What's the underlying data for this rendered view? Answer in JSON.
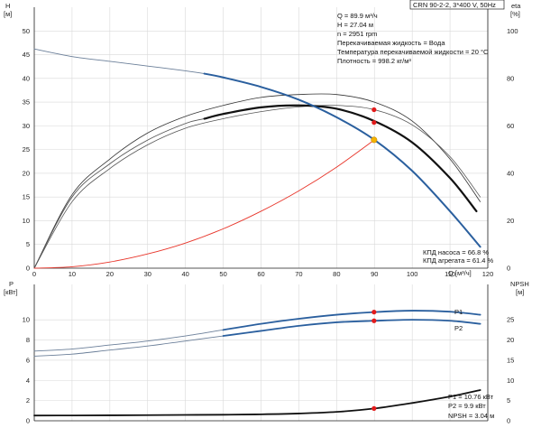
{
  "title": "CRN 90-2-2, 3*400 V, 50Hz",
  "info": [
    "Q = 89.9 м³/ч",
    "H = 27.04 м",
    "n = 2951 rpm",
    "Перекачиваемая жидкость = Вода",
    "Температура перекачиваемой жидкости = 20 °C",
    "Плотность = 998.2 кг/м³"
  ],
  "colors": {
    "head_curve": "#2a5f9e",
    "power_curve": "#2a5f9e",
    "system_curve": "#e8352a",
    "efficiency_curve": "#111111",
    "operating_point": "#f5b400",
    "marker": "#e31b1b",
    "grid": "#d9d9d9"
  },
  "chart_data": [
    {
      "type": "line",
      "name": "upper",
      "xlabel": "Q [м³/ч]",
      "ylabel": "H",
      "ylabel_unit": "[м]",
      "ylabel_right": "eta",
      "ylabel_right_unit": "[%]",
      "xlim": [
        0,
        120
      ],
      "ylim": [
        0,
        55
      ],
      "ylim_right": [
        0,
        110
      ],
      "x_ticks": [
        0,
        10,
        20,
        30,
        40,
        50,
        60,
        70,
        80,
        90,
        100,
        110,
        120
      ],
      "y_ticks": [
        0,
        5,
        10,
        15,
        20,
        25,
        30,
        35,
        40,
        45,
        50
      ],
      "y_ticks_right": [
        0,
        20,
        40,
        60,
        80,
        100
      ],
      "grid": true,
      "series": [
        {
          "key": "head",
          "x": [
            0,
            10,
            20,
            30,
            40,
            45,
            50,
            60,
            70,
            80,
            90,
            100,
            110,
            118
          ],
          "y": [
            46.2,
            44.6,
            43.6,
            42.6,
            41.6,
            41.0,
            40.2,
            38.2,
            35.5,
            31.8,
            27.04,
            20.5,
            12.0,
            4.5
          ]
        },
        {
          "key": "system",
          "x": [
            0,
            10,
            20,
            30,
            40,
            50,
            60,
            70,
            80,
            90
          ],
          "y": [
            0,
            0.3,
            1.3,
            3.0,
            5.3,
            8.3,
            12.0,
            16.3,
            21.3,
            27.04
          ]
        },
        {
          "key": "eta_thin_upper",
          "x": [
            0,
            10,
            20,
            30,
            40,
            50,
            60,
            70,
            80,
            90,
            100,
            110,
            118
          ],
          "y": [
            0,
            15.5,
            23,
            28.5,
            32,
            34.3,
            36,
            36.6,
            36.6,
            35.0,
            31.0,
            23.0,
            14.0
          ]
        },
        {
          "key": "eta_pump",
          "x": [
            0,
            10,
            20,
            30,
            40,
            45,
            50,
            60,
            70,
            80,
            90,
            100,
            110,
            117
          ],
          "y": [
            0,
            15,
            22,
            27,
            30.5,
            31.5,
            32.5,
            33.9,
            34.3,
            33.6,
            31.0,
            26.5,
            19.0,
            12.0
          ]
        },
        {
          "key": "eta_thin_lower",
          "x": [
            0,
            10,
            20,
            30,
            40,
            50,
            60,
            70,
            80,
            90,
            100,
            110,
            118
          ],
          "y": [
            0,
            14,
            21,
            26,
            29.5,
            31.5,
            33,
            34,
            34.3,
            33.4,
            30.2,
            23.5,
            15.0
          ]
        }
      ],
      "markers": [
        {
          "x": 89.9,
          "y": 27.04,
          "kind": "operating"
        },
        {
          "x": 89.9,
          "y_right": 66.8,
          "kind": "eta"
        },
        {
          "x": 89.9,
          "y_right": 61.4,
          "kind": "eta"
        }
      ],
      "annotations": [
        "КПД насоса = 66.8 %",
        "КПД агрегата = 61.4 %"
      ]
    },
    {
      "type": "line",
      "name": "lower",
      "ylabel": "P",
      "ylabel_unit": "[кВт]",
      "ylabel_right": "NPSH",
      "ylabel_right_unit": "[м]",
      "xlim": [
        0,
        120
      ],
      "ylim": [
        0,
        13.5
      ],
      "ylim_right": [
        0,
        33.75
      ],
      "y_ticks": [
        0,
        2,
        4,
        6,
        8,
        10
      ],
      "y_ticks_right": [
        0,
        5,
        10,
        15,
        20,
        25
      ],
      "grid": true,
      "series": [
        {
          "key": "P1",
          "label": "P1",
          "x": [
            0,
            10,
            20,
            30,
            40,
            50,
            60,
            70,
            80,
            90,
            100,
            110,
            118
          ],
          "y": [
            6.9,
            7.1,
            7.5,
            7.9,
            8.4,
            9.0,
            9.6,
            10.1,
            10.5,
            10.76,
            10.9,
            10.8,
            10.5
          ]
        },
        {
          "key": "P2",
          "label": "P2",
          "x": [
            0,
            10,
            20,
            30,
            40,
            50,
            60,
            70,
            80,
            90,
            100,
            110,
            118
          ],
          "y": [
            6.4,
            6.6,
            7.0,
            7.4,
            7.9,
            8.4,
            8.9,
            9.4,
            9.75,
            9.9,
            10.0,
            9.9,
            9.6
          ]
        },
        {
          "key": "NPSH",
          "x": [
            0,
            10,
            20,
            30,
            40,
            50,
            60,
            70,
            80,
            90,
            100,
            110,
            118
          ],
          "y": [
            1.3,
            1.32,
            1.35,
            1.4,
            1.45,
            1.5,
            1.6,
            1.8,
            2.2,
            3.04,
            4.4,
            6.0,
            7.6
          ]
        }
      ],
      "markers": [
        {
          "x": 89.9,
          "y": 10.76,
          "kind": "power"
        },
        {
          "x": 89.9,
          "y": 9.9,
          "kind": "power"
        },
        {
          "x": 89.9,
          "y_right": 3.04,
          "kind": "npsh"
        }
      ],
      "annotations": [
        "P1 = 10.76 кВт",
        "P2 = 9.9 кВт",
        "NPSH = 3.04 м"
      ]
    }
  ]
}
